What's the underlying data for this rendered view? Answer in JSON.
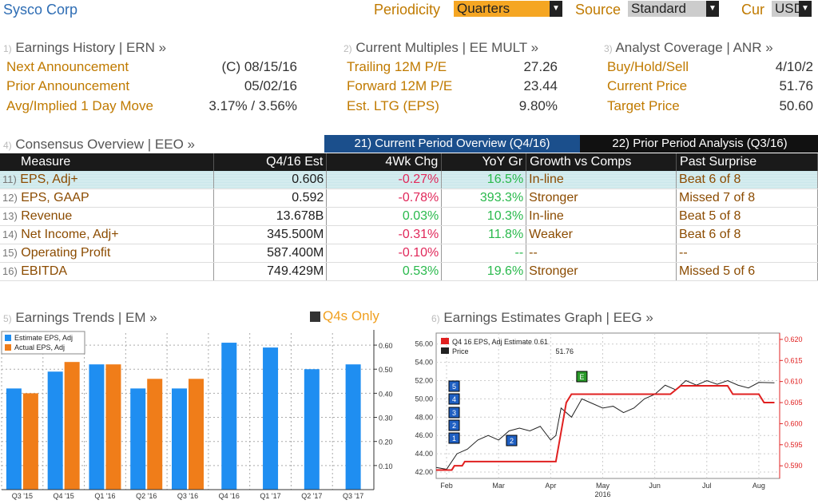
{
  "header": {
    "company": "Sysco Corp",
    "periodicity_label": "Periodicity",
    "periodicity_value": "Quarters",
    "source_label": "Source",
    "source_value": "Standard",
    "currency_label": "Cur",
    "currency_value": "USD"
  },
  "earnings_history": {
    "num": "1)",
    "title": "Earnings History | ERN »",
    "rows": [
      {
        "label": "Next Announcement",
        "value": "(C)  08/15/16"
      },
      {
        "label": "Prior Announcement",
        "value": "05/02/16"
      },
      {
        "label": "Avg/Implied 1 Day Move",
        "value": "3.17% / 3.56%"
      }
    ]
  },
  "current_multiples": {
    "num": "2)",
    "title": "Current Multiples | EE MULT »",
    "rows": [
      {
        "label": "Trailing 12M P/E",
        "value": "27.26"
      },
      {
        "label": "Forward 12M P/E",
        "value": "23.44"
      },
      {
        "label": "Est. LTG (EPS)",
        "value": "9.80%"
      }
    ]
  },
  "analyst_coverage": {
    "num": "3)",
    "title": "Analyst Coverage | ANR »",
    "rows": [
      {
        "label": "Buy/Hold/Sell",
        "value": "4/10/2"
      },
      {
        "label": "Current Price",
        "value": "51.76"
      },
      {
        "label": "Target Price",
        "value": "50.60"
      }
    ]
  },
  "consensus": {
    "num": "4)",
    "title": "Consensus Overview | EEO »",
    "tab_current": "21) Current Period Overview (Q4/16)",
    "tab_prior": "22) Prior Period Analysis (Q3/16)",
    "columns": [
      "Measure",
      "Q4/16 Est",
      "4Wk Chg",
      "YoY Gr",
      "Growth vs Comps",
      "Past Surprise"
    ],
    "rows": [
      {
        "idx": "11)",
        "measure": "EPS, Adj+",
        "est": "0.606",
        "chg": "-0.27%",
        "yoy": "16.5%",
        "comps": "In-line",
        "surprise": "Beat 6 of 8"
      },
      {
        "idx": "12)",
        "measure": "EPS, GAAP",
        "est": "0.592",
        "chg": "-0.78%",
        "yoy": "393.3%",
        "comps": "Stronger",
        "surprise": "Missed 7 of 8"
      },
      {
        "idx": "13)",
        "measure": "Revenue",
        "est": "13.678B",
        "chg": "0.03%",
        "yoy": "10.3%",
        "comps": "In-line",
        "surprise": "Beat 5 of 8"
      },
      {
        "idx": "14)",
        "measure": "Net Income, Adj+",
        "est": "345.500M",
        "chg": "-0.31%",
        "yoy": "11.8%",
        "comps": "Weaker",
        "surprise": "Beat 6 of 8"
      },
      {
        "idx": "15)",
        "measure": "Operating Profit",
        "est": "587.400M",
        "chg": "-0.10%",
        "yoy": "--",
        "comps": "--",
        "surprise": "--"
      },
      {
        "idx": "16)",
        "measure": "EBITDA",
        "est": "749.429M",
        "chg": "0.53%",
        "yoy": "19.6%",
        "comps": "Stronger",
        "surprise": "Missed 5 of 6"
      }
    ]
  },
  "earnings_trends": {
    "num": "5)",
    "title": "Earnings Trends | EM »",
    "toggle_label": "Q4s Only"
  },
  "earnings_graph": {
    "num": "6)",
    "title": "Earnings Estimates Graph | EEG »"
  },
  "colors": {
    "brand_blue": "#2e6db4",
    "orange": "#f07d19",
    "bar_blue": "#1f8ef1",
    "red": "#e02020",
    "amber": "#c07a00"
  },
  "chart_data": [
    {
      "type": "bar",
      "categories": [
        "Q3 '15",
        "Q4 '15",
        "Q1 '16",
        "Q2 '16",
        "Q3 '16",
        "Q4 '16",
        "Q1 '17",
        "Q2 '17",
        "Q3 '17"
      ],
      "series": [
        {
          "name": "Estimate EPS, Adj",
          "values": [
            0.42,
            0.49,
            0.52,
            0.42,
            0.42,
            0.61,
            0.59,
            0.5,
            0.52
          ]
        },
        {
          "name": "Actual EPS, Adj",
          "values": [
            0.4,
            0.53,
            0.52,
            0.46,
            0.46,
            null,
            null,
            null,
            null
          ]
        }
      ],
      "ylim": [
        0,
        0.65
      ],
      "y_ticks": [
        "0.10",
        "0.20",
        "0.30",
        "0.40",
        "0.50",
        "0.60"
      ],
      "legend": "top-left"
    },
    {
      "type": "line",
      "x_labels": [
        "Feb",
        "Mar",
        "Apr",
        "May",
        "Jun",
        "Jul",
        "Aug"
      ],
      "x_sub": "2016",
      "series": [
        {
          "name": "Q4 16 EPS, Adj Estimate",
          "legend_value": "0.61",
          "axis": "right",
          "points": [
            [
              0,
              0.589
            ],
            [
              0.3,
              0.589
            ],
            [
              0.35,
              0.59
            ],
            [
              0.5,
              0.59
            ],
            [
              0.55,
              0.591
            ],
            [
              2.3,
              0.591
            ],
            [
              2.5,
              0.605
            ],
            [
              2.6,
              0.607
            ],
            [
              4.5,
              0.607
            ],
            [
              4.7,
              0.609
            ],
            [
              5.6,
              0.609
            ],
            [
              5.7,
              0.607
            ],
            [
              6.2,
              0.607
            ],
            [
              6.3,
              0.605
            ],
            [
              6.5,
              0.605
            ]
          ]
        },
        {
          "name": "Price",
          "legend_value": "51.76",
          "axis": "left",
          "points": [
            [
              0,
              42.5
            ],
            [
              0.2,
              42.3
            ],
            [
              0.4,
              44
            ],
            [
              0.6,
              44.5
            ],
            [
              0.8,
              45.5
            ],
            [
              1.0,
              46
            ],
            [
              1.2,
              45.5
            ],
            [
              1.4,
              46.5
            ],
            [
              1.6,
              46.8
            ],
            [
              1.8,
              46.5
            ],
            [
              2.0,
              47
            ],
            [
              2.2,
              45.5
            ],
            [
              2.3,
              46
            ],
            [
              2.4,
              49
            ],
            [
              2.6,
              48
            ],
            [
              2.8,
              50
            ],
            [
              3.0,
              49.5
            ],
            [
              3.2,
              49
            ],
            [
              3.4,
              49.2
            ],
            [
              3.6,
              48.5
            ],
            [
              3.8,
              49
            ],
            [
              4.0,
              50
            ],
            [
              4.2,
              50.5
            ],
            [
              4.4,
              51.5
            ],
            [
              4.6,
              51
            ],
            [
              4.8,
              52
            ],
            [
              5.0,
              51.5
            ],
            [
              5.2,
              52
            ],
            [
              5.4,
              51.6
            ],
            [
              5.6,
              52
            ],
            [
              5.8,
              51.5
            ],
            [
              6.0,
              51.2
            ],
            [
              6.2,
              51.8
            ],
            [
              6.5,
              51.76
            ]
          ]
        }
      ],
      "y_left_ticks": [
        "42.00",
        "44.00",
        "46.00",
        "48.00",
        "50.00",
        "52.00",
        "54.00",
        "56.00"
      ],
      "y_right_ticks": [
        "0.590",
        "0.595",
        "0.600",
        "0.605",
        "0.610",
        "0.615",
        "0.620"
      ],
      "markers": [
        "5",
        "4",
        "3",
        "2",
        "1",
        "2",
        "E"
      ],
      "legend": "top-left"
    }
  ]
}
